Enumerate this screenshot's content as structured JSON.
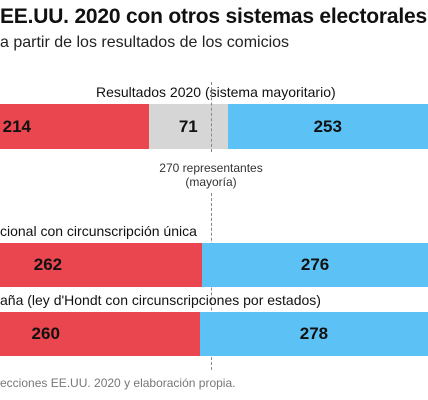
{
  "header": {
    "title": "EE.UU. 2020 con otros sistemas electorales",
    "subtitle": "a partir de los resultados de los comicios"
  },
  "majority": {
    "label_line1": "270 representantes",
    "label_line2": "(mayoría)",
    "value": 270
  },
  "source": "ecciones EE.UU. 2020 y elaboración propia.",
  "colors": {
    "red": "#e9464f",
    "gray": "#d6d6d6",
    "blue": "#5cc2f5"
  },
  "chart_data": {
    "type": "bar",
    "orientation": "horizontal-stacked",
    "total": 538,
    "categories": [
      "Resultados 2020 (sistema mayoritario)",
      "cional con circunscripción única",
      "aña (ley d'Hondt con circunscripciones por estados)"
    ],
    "series": [
      {
        "color": "#e9464f",
        "values": [
          214,
          262,
          260
        ]
      },
      {
        "color": "#d6d6d6",
        "values": [
          71,
          0,
          0
        ]
      },
      {
        "color": "#5cc2f5",
        "values": [
          253,
          276,
          278
        ]
      }
    ],
    "value_labels": [
      [
        "214",
        "71",
        "253"
      ],
      [
        "262",
        "276"
      ],
      [
        "260",
        "278"
      ]
    ]
  }
}
